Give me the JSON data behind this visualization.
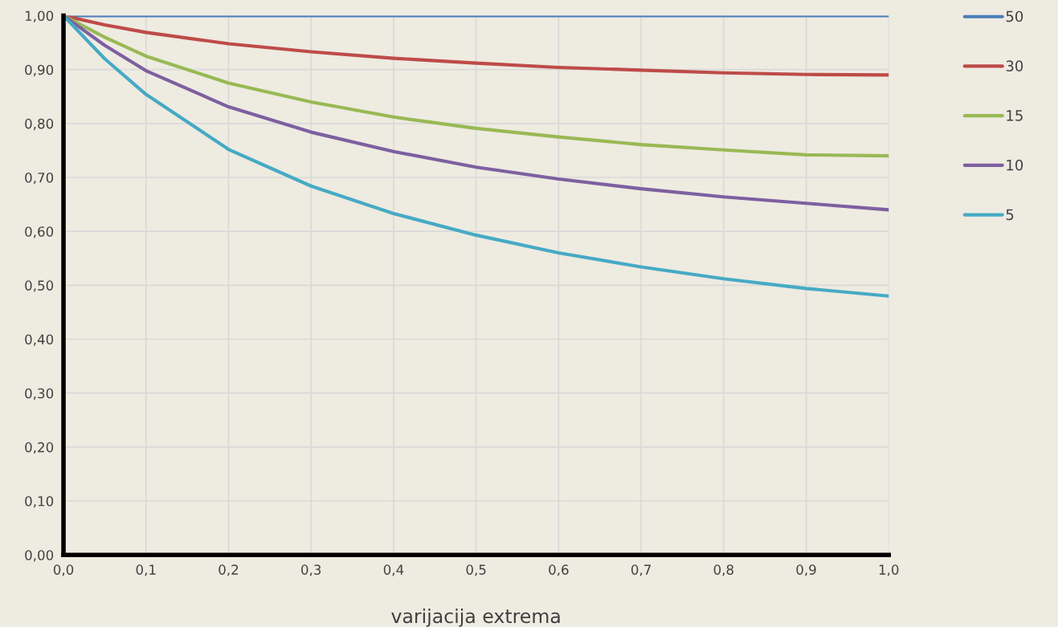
{
  "chart_data": {
    "type": "line",
    "xlabel": "varijacija extrema",
    "x": [
      0,
      0.05,
      0.1,
      0.2,
      0.3,
      0.4,
      0.5,
      0.6,
      0.7,
      0.8,
      0.9,
      1.0
    ],
    "series": [
      {
        "name": "50",
        "color": "#4a7ebb",
        "values": [
          1.0,
          1.0,
          1.0,
          1.0,
          1.0,
          1.0,
          1.0,
          1.0,
          1.0,
          1.0,
          1.0,
          1.0
        ]
      },
      {
        "name": "30",
        "color": "#be4b48",
        "values": [
          1.0,
          0.983,
          0.969,
          0.948,
          0.933,
          0.921,
          0.912,
          0.904,
          0.899,
          0.894,
          0.891,
          0.89
        ]
      },
      {
        "name": "15",
        "color": "#98b954",
        "values": [
          1.0,
          0.96,
          0.925,
          0.875,
          0.84,
          0.812,
          0.791,
          0.775,
          0.761,
          0.751,
          0.742,
          0.74
        ]
      },
      {
        "name": "10",
        "color": "#7d60a0",
        "values": [
          1.0,
          0.945,
          0.898,
          0.831,
          0.784,
          0.748,
          0.719,
          0.697,
          0.679,
          0.664,
          0.652,
          0.64
        ]
      },
      {
        "name": "5",
        "color": "#46aac5",
        "values": [
          1.0,
          0.92,
          0.854,
          0.752,
          0.684,
          0.633,
          0.593,
          0.56,
          0.534,
          0.512,
          0.494,
          0.48
        ]
      }
    ],
    "xlim": [
      0,
      1
    ],
    "xticks": [
      {
        "value": 0,
        "label": "0,0"
      },
      {
        "value": 0.1,
        "label": "0,1"
      },
      {
        "value": 0.2,
        "label": "0,2"
      },
      {
        "value": 0.3,
        "label": "0,3"
      },
      {
        "value": 0.4,
        "label": "0,4"
      },
      {
        "value": 0.5,
        "label": "0,5"
      },
      {
        "value": 0.6,
        "label": "0,6"
      },
      {
        "value": 0.7,
        "label": "0,7"
      },
      {
        "value": 0.8,
        "label": "0,8"
      },
      {
        "value": 0.9,
        "label": "0,9"
      },
      {
        "value": 1.0,
        "label": "1,0"
      }
    ],
    "ylim": [
      0,
      1
    ],
    "yticks": [
      {
        "value": 0,
        "label": "0,00"
      },
      {
        "value": 0.1,
        "label": "0,10"
      },
      {
        "value": 0.2,
        "label": "0,20"
      },
      {
        "value": 0.3,
        "label": "0,30"
      },
      {
        "value": 0.4,
        "label": "0,40"
      },
      {
        "value": 0.5,
        "label": "0,50"
      },
      {
        "value": 0.6,
        "label": "0,60"
      },
      {
        "value": 0.7,
        "label": "0,70"
      },
      {
        "value": 0.8,
        "label": "0,80"
      },
      {
        "value": 0.9,
        "label": "0,90"
      },
      {
        "value": 1.0,
        "label": "1,00"
      }
    ],
    "grid": true,
    "legend": "right",
    "marker": "none",
    "line_style": "solid"
  }
}
